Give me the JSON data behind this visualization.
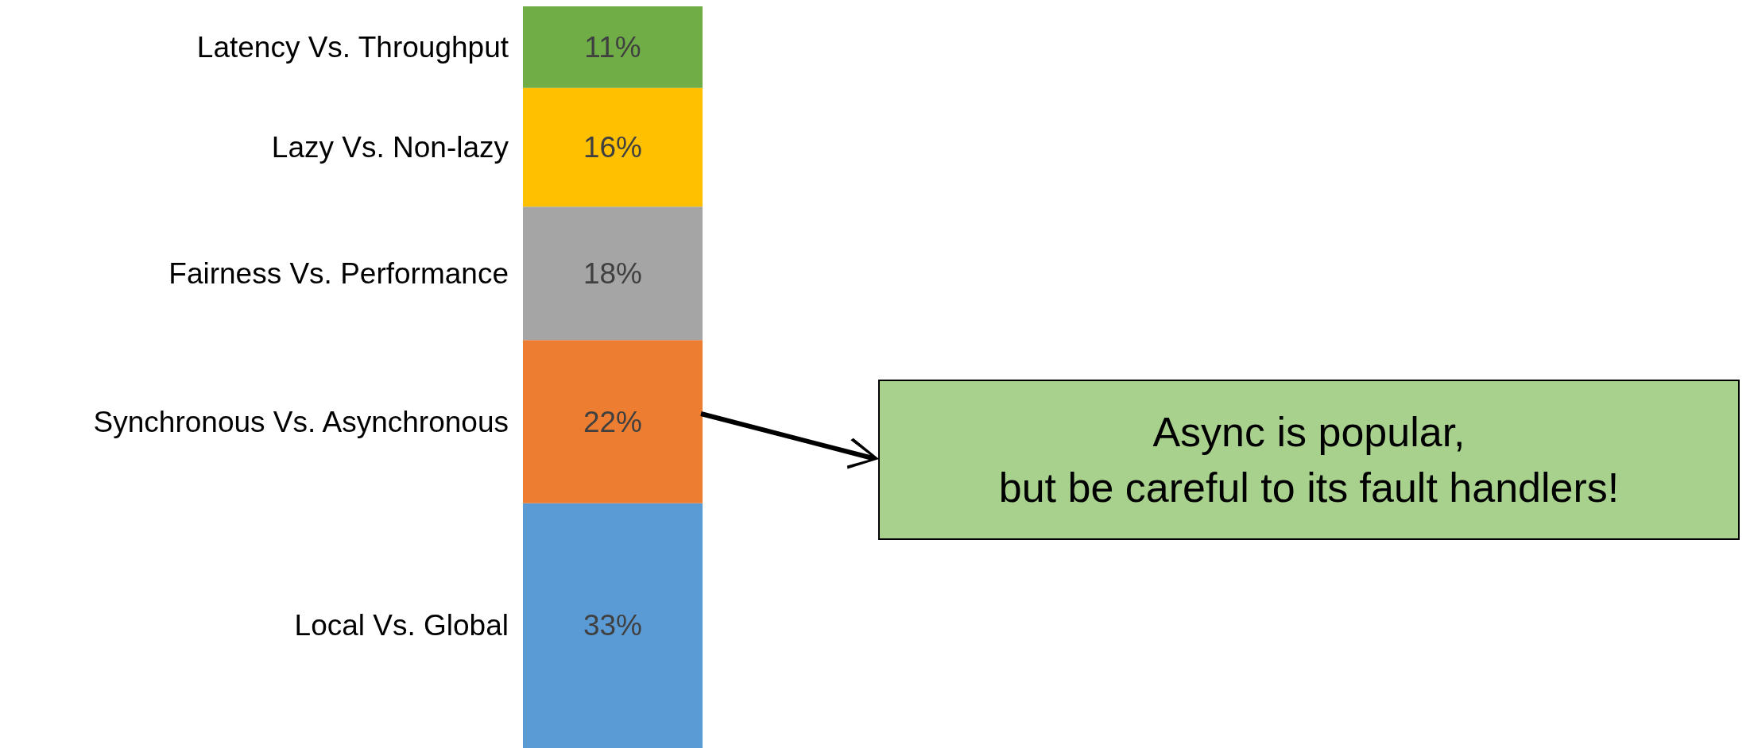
{
  "chart_data": {
    "type": "bar",
    "stacked": true,
    "categories": [
      null
    ],
    "legend": false,
    "grid": false,
    "series": [
      {
        "name": "Local Vs. Global",
        "color": "#5b9bd5",
        "values": [
          33
        ],
        "value_labels": [
          "33%"
        ]
      },
      {
        "name": "Synchronous Vs. Asynchronous",
        "color": "#ed7d31",
        "values": [
          22
        ],
        "value_labels": [
          "22%"
        ]
      },
      {
        "name": "Fairness Vs. Performance",
        "color": "#a5a5a5",
        "values": [
          18
        ],
        "value_labels": [
          "18%"
        ]
      },
      {
        "name": "Lazy Vs. Non-lazy",
        "color": "#ffc000",
        "values": [
          16
        ],
        "value_labels": [
          "16%"
        ]
      },
      {
        "name": "Latency Vs. Throughput",
        "color": "#70ad47",
        "values": [
          11
        ],
        "value_labels": [
          "11%"
        ]
      }
    ],
    "annotations": [
      "Async is popular,\nbut be careful to its fault handlers!"
    ]
  }
}
